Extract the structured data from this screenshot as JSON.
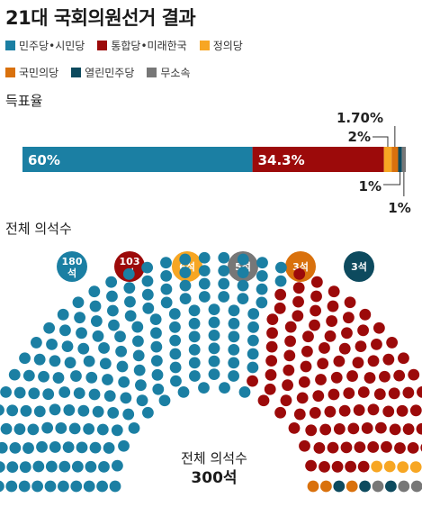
{
  "title": "21대 국회의원선거 결과",
  "legend": [
    {
      "label": "민주당•시민당",
      "color": "#1b7fa3"
    },
    {
      "label": "통합당•미래한국",
      "color": "#9c0a0a"
    },
    {
      "label": "정의당",
      "color": "#f7a623"
    },
    {
      "label": "국민의당",
      "color": "#d9710d"
    },
    {
      "label": "열린민주당",
      "color": "#0d4a5e"
    },
    {
      "label": "무소속",
      "color": "#777777"
    }
  ],
  "vote_share_label": "득표율",
  "seats_label": "전체 의석수",
  "chart_data": [
    {
      "type": "bar",
      "title": "득표율",
      "orientation": "horizontal-stacked",
      "categories": [
        "민주당•시민당",
        "통합당•미래한국",
        "정의당",
        "국민의당",
        "열린민주당",
        "무소속"
      ],
      "values": [
        60,
        34.3,
        2,
        1.7,
        1,
        1
      ],
      "value_labels": [
        "60%",
        "34.3%",
        "2%",
        "1.70%",
        "1%",
        "1%"
      ],
      "colors": [
        "#1b7fa3",
        "#9c0a0a",
        "#f7a623",
        "#d9710d",
        "#0d4a5e",
        "#777777"
      ],
      "xlim": [
        0,
        100
      ]
    },
    {
      "type": "parliament",
      "title": "전체 의석수",
      "categories": [
        "민주당•시민당",
        "통합당•미래한국",
        "정의당",
        "국민의당",
        "열린민주당",
        "무소속"
      ],
      "values": [
        180,
        103,
        6,
        3,
        3,
        5
      ],
      "badge_labels": [
        "180석",
        "103석",
        "6석",
        "5석",
        "3석",
        "3석"
      ],
      "badge_colors": [
        "#1b7fa3",
        "#9c0a0a",
        "#f7a623",
        "#777777",
        "#d9710d",
        "#0d4a5e"
      ],
      "colors": [
        "#1b7fa3",
        "#9c0a0a",
        "#f7a623",
        "#d9710d",
        "#0d4a5e",
        "#777777"
      ],
      "total_label": "전체 의석수",
      "total_value": "300석"
    }
  ]
}
